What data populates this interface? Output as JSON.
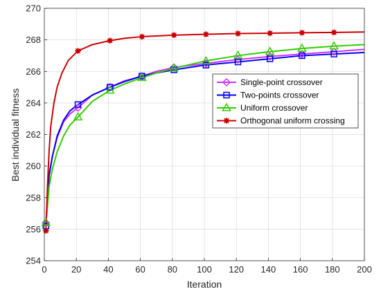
{
  "chart_data": {
    "type": "line",
    "xlabel": "Iteration",
    "ylabel": "Best individual fitness",
    "xlim": [
      0,
      200
    ],
    "ylim": [
      254,
      270
    ],
    "xticks": [
      0,
      20,
      40,
      60,
      80,
      100,
      120,
      140,
      160,
      180,
      200
    ],
    "yticks": [
      254,
      256,
      258,
      260,
      262,
      264,
      266,
      268,
      270
    ],
    "grid": true,
    "legend_position": "center-right",
    "series": [
      {
        "name": "Single-point crossover",
        "color": "#cc33ff",
        "marker": "diamond",
        "x": [
          1,
          2,
          3,
          5,
          8,
          12,
          16,
          21,
          30,
          41,
          50,
          61,
          70,
          81,
          100,
          121,
          141,
          161,
          181,
          200
        ],
        "y": [
          256.4,
          258.2,
          259.5,
          260.6,
          261.8,
          262.8,
          263.3,
          263.7,
          264.5,
          265.0,
          265.4,
          265.7,
          266.0,
          266.25,
          266.5,
          266.75,
          266.95,
          267.1,
          267.25,
          267.4
        ],
        "marker_x": [
          1,
          21,
          41,
          61,
          81,
          101,
          121,
          141,
          161,
          181
        ],
        "marker_y": [
          256.4,
          263.7,
          265.0,
          265.7,
          266.25,
          266.5,
          266.75,
          266.95,
          267.1,
          267.25
        ]
      },
      {
        "name": "Two-points crossover",
        "color": "#0000ee",
        "marker": "square",
        "x": [
          1,
          2,
          3,
          5,
          8,
          12,
          16,
          21,
          30,
          41,
          50,
          61,
          70,
          81,
          100,
          121,
          141,
          161,
          181,
          200
        ],
        "y": [
          256.2,
          258.0,
          259.4,
          260.6,
          261.9,
          262.9,
          263.5,
          263.9,
          264.5,
          265.0,
          265.35,
          265.7,
          265.9,
          266.1,
          266.4,
          266.6,
          266.8,
          267.0,
          267.1,
          267.2
        ],
        "marker_x": [
          1,
          21,
          41,
          61,
          81,
          101,
          121,
          141,
          161,
          181
        ],
        "marker_y": [
          256.2,
          263.9,
          265.0,
          265.7,
          266.1,
          266.4,
          266.6,
          266.8,
          267.0,
          267.1
        ]
      },
      {
        "name": "Uniform crossover",
        "color": "#33cc00",
        "marker": "triangle",
        "x": [
          1,
          2,
          3,
          5,
          8,
          12,
          16,
          21,
          30,
          41,
          50,
          61,
          70,
          81,
          100,
          121,
          141,
          161,
          181,
          200
        ],
        "y": [
          256.4,
          257.5,
          258.7,
          259.8,
          260.9,
          261.9,
          262.6,
          263.1,
          264.1,
          264.8,
          265.2,
          265.6,
          265.9,
          266.2,
          266.65,
          267.0,
          267.25,
          267.45,
          267.6,
          267.7
        ],
        "marker_x": [
          1,
          21,
          41,
          61,
          81,
          101,
          121,
          141,
          161,
          181
        ],
        "marker_y": [
          256.4,
          263.1,
          264.8,
          265.6,
          266.2,
          266.65,
          267.0,
          267.25,
          267.45,
          267.6
        ]
      },
      {
        "name": "Orthogonal uniform crossing",
        "color": "#cc0000",
        "marker": "star",
        "x": [
          1,
          2,
          3,
          4,
          6,
          8,
          11,
          15,
          21,
          30,
          41,
          50,
          61,
          81,
          100,
          121,
          141,
          161,
          181,
          200
        ],
        "y": [
          255.9,
          258.8,
          261.0,
          262.5,
          264.0,
          265.0,
          265.9,
          266.7,
          267.3,
          267.7,
          267.95,
          268.1,
          268.2,
          268.3,
          268.35,
          268.4,
          268.42,
          268.45,
          268.47,
          268.5
        ],
        "marker_x": [
          1,
          21,
          41,
          61,
          81,
          101,
          121,
          141,
          161,
          181
        ],
        "marker_y": [
          255.9,
          267.3,
          267.95,
          268.2,
          268.3,
          268.35,
          268.4,
          268.42,
          268.45,
          268.47
        ]
      }
    ]
  }
}
